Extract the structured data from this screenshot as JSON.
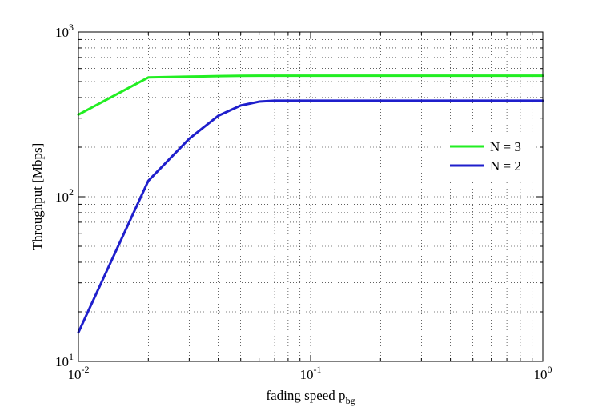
{
  "chart_data": {
    "type": "line",
    "title": "",
    "xlabel": "fading speed p",
    "xlabel_subscript": "bg",
    "ylabel": "Throughput [Mbps]",
    "xscale": "log",
    "yscale": "log",
    "xlim": [
      0.01,
      1
    ],
    "ylim": [
      10,
      1000
    ],
    "grid": true,
    "legend_position": "right",
    "x_ticks": [
      {
        "value": 0.01,
        "base": "10",
        "exp": "-2"
      },
      {
        "value": 0.1,
        "base": "10",
        "exp": "-1"
      },
      {
        "value": 1,
        "base": "10",
        "exp": "0"
      }
    ],
    "y_ticks": [
      {
        "value": 10,
        "base": "10",
        "exp": "1"
      },
      {
        "value": 100,
        "base": "10",
        "exp": "2"
      },
      {
        "value": 1000,
        "base": "10",
        "exp": "3"
      }
    ],
    "series": [
      {
        "name": "N = 3",
        "color": "#22ee22",
        "x": [
          0.01,
          0.02,
          0.03,
          0.04,
          0.05,
          0.06,
          0.07,
          0.1,
          0.2,
          0.5,
          1.0
        ],
        "y": [
          315,
          530,
          536,
          540,
          542,
          543,
          543,
          543,
          543,
          543,
          543
        ]
      },
      {
        "name": "N = 2",
        "color": "#1f1fcc",
        "x": [
          0.01,
          0.02,
          0.03,
          0.04,
          0.05,
          0.06,
          0.07,
          0.1,
          0.2,
          0.5,
          1.0
        ],
        "y": [
          15,
          125,
          225,
          310,
          358,
          378,
          383,
          383,
          383,
          383,
          383
        ]
      }
    ]
  }
}
